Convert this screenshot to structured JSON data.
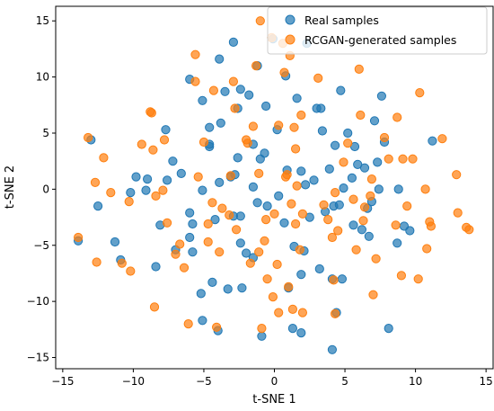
{
  "chart_data": {
    "type": "scatter",
    "title": "",
    "xlabel": "t-SNE 1",
    "ylabel": "t-SNE 2",
    "xlim": [
      -15.5,
      15.5
    ],
    "ylim": [
      -16.0,
      16.3
    ],
    "xticks": [
      -15,
      -10,
      -5,
      0,
      5,
      10,
      15
    ],
    "yticks": [
      -15,
      -10,
      -5,
      0,
      5,
      10,
      15
    ],
    "grid": false,
    "legend_position": "top-right",
    "series": [
      {
        "name": "Real samples",
        "color": "#1f77b4",
        "points": [
          [
            -13.9,
            -4.6
          ],
          [
            -13.0,
            4.4
          ],
          [
            -12.5,
            -1.5
          ],
          [
            -11.3,
            -4.7
          ],
          [
            -10.9,
            -6.3
          ],
          [
            -10.2,
            -0.3
          ],
          [
            -9.8,
            1.1
          ],
          [
            -9.1,
            -0.1
          ],
          [
            -9.0,
            0.9
          ],
          [
            -8.4,
            -6.9
          ],
          [
            -8.1,
            -3.2
          ],
          [
            -7.7,
            5.3
          ],
          [
            -7.6,
            0.8
          ],
          [
            -7.2,
            2.5
          ],
          [
            -7.0,
            -5.4
          ],
          [
            -6.6,
            1.4
          ],
          [
            -6.0,
            9.8
          ],
          [
            -6.0,
            -2.1
          ],
          [
            -6.0,
            -4.3
          ],
          [
            -5.8,
            -3.1
          ],
          [
            -5.8,
            -5.6
          ],
          [
            -5.2,
            -9.3
          ],
          [
            -5.1,
            -11.7
          ],
          [
            -5.1,
            -0.1
          ],
          [
            -5.1,
            7.9
          ],
          [
            -4.6,
            3.8
          ],
          [
            -4.6,
            5.5
          ],
          [
            -4.6,
            4.0
          ],
          [
            -4.4,
            -8.3
          ],
          [
            -4.2,
            -2.7
          ],
          [
            -4.0,
            -12.6
          ],
          [
            -3.9,
            11.6
          ],
          [
            -3.9,
            0.6
          ],
          [
            -3.8,
            5.9
          ],
          [
            -3.5,
            8.7
          ],
          [
            -3.3,
            -8.9
          ],
          [
            -3.1,
            1.1
          ],
          [
            -2.9,
            13.1
          ],
          [
            -2.9,
            -2.4
          ],
          [
            -2.8,
            1.3
          ],
          [
            -2.6,
            2.8
          ],
          [
            -2.6,
            7.2
          ],
          [
            -2.4,
            8.9
          ],
          [
            -2.4,
            -2.4
          ],
          [
            -2.4,
            -4.8
          ],
          [
            -2.3,
            -8.8
          ],
          [
            -2.0,
            -5.7
          ],
          [
            -1.8,
            8.4
          ],
          [
            -1.5,
            -6.1
          ],
          [
            -1.5,
            4.0
          ],
          [
            -1.5,
            0.2
          ],
          [
            -1.2,
            -1.2
          ],
          [
            -1.2,
            11.0
          ],
          [
            -1.0,
            2.7
          ],
          [
            -0.9,
            -13.1
          ],
          [
            -0.7,
            3.2
          ],
          [
            -0.6,
            7.4
          ],
          [
            -0.5,
            -1.5
          ],
          [
            -0.1,
            13.4
          ],
          [
            0.2,
            5.3
          ],
          [
            0.3,
            -0.6
          ],
          [
            0.7,
            -3.0
          ],
          [
            0.8,
            10.1
          ],
          [
            0.9,
            1.7
          ],
          [
            1.0,
            -8.8
          ],
          [
            1.3,
            -12.4
          ],
          [
            1.4,
            -5.1
          ],
          [
            1.6,
            8.1
          ],
          [
            1.9,
            -12.8
          ],
          [
            1.9,
            -7.6
          ],
          [
            1.9,
            1.6
          ],
          [
            2.1,
            -5.5
          ],
          [
            2.2,
            0.4
          ],
          [
            2.3,
            13.0
          ],
          [
            2.5,
            -2.5
          ],
          [
            2.8,
            0.8
          ],
          [
            3.0,
            7.2
          ],
          [
            3.2,
            -7.1
          ],
          [
            3.3,
            7.2
          ],
          [
            3.4,
            5.2
          ],
          [
            3.6,
            -2.0
          ],
          [
            3.9,
            1.8
          ],
          [
            4.1,
            -14.3
          ],
          [
            4.1,
            -8.0
          ],
          [
            4.2,
            -1.5
          ],
          [
            4.3,
            3.9
          ],
          [
            4.4,
            -11.0
          ],
          [
            4.6,
            -1.4
          ],
          [
            4.7,
            8.8
          ],
          [
            4.8,
            -8.0
          ],
          [
            4.9,
            0.1
          ],
          [
            5.2,
            5.0
          ],
          [
            5.5,
            1.0
          ],
          [
            5.6,
            -3.2
          ],
          [
            5.7,
            3.8
          ],
          [
            5.9,
            2.2
          ],
          [
            6.2,
            -3.6
          ],
          [
            6.4,
            1.9
          ],
          [
            6.6,
            -1.7
          ],
          [
            6.7,
            -4.2
          ],
          [
            6.9,
            -1.1
          ],
          [
            7.1,
            6.1
          ],
          [
            7.3,
            2.4
          ],
          [
            7.4,
            0.0
          ],
          [
            7.6,
            8.3
          ],
          [
            7.8,
            4.2
          ],
          [
            8.1,
            -12.4
          ],
          [
            8.7,
            -4.8
          ],
          [
            8.8,
            0.0
          ],
          [
            9.2,
            -3.3
          ],
          [
            9.6,
            -3.7
          ],
          [
            11.2,
            4.3
          ]
        ]
      },
      {
        "name": "RCGAN-generated samples",
        "color": "#ff7f0e",
        "points": [
          [
            -13.9,
            -4.3
          ],
          [
            -13.2,
            4.6
          ],
          [
            -12.7,
            0.6
          ],
          [
            -12.6,
            -6.5
          ],
          [
            -12.1,
            2.8
          ],
          [
            -11.6,
            -0.3
          ],
          [
            -10.8,
            -6.6
          ],
          [
            -10.3,
            -1.1
          ],
          [
            -10.2,
            -7.3
          ],
          [
            -9.4,
            4.0
          ],
          [
            -8.8,
            6.9
          ],
          [
            -8.7,
            6.8
          ],
          [
            -8.6,
            3.5
          ],
          [
            -8.5,
            -10.5
          ],
          [
            -8.4,
            -0.6
          ],
          [
            -7.9,
            -0.1
          ],
          [
            -7.8,
            4.4
          ],
          [
            -7.6,
            -3.0
          ],
          [
            -7.0,
            -5.8
          ],
          [
            -6.7,
            -4.9
          ],
          [
            -6.4,
            -7.0
          ],
          [
            -6.1,
            -12.0
          ],
          [
            -5.6,
            12.0
          ],
          [
            -5.6,
            9.6
          ],
          [
            -5.4,
            1.1
          ],
          [
            -5.0,
            4.2
          ],
          [
            -4.7,
            -3.1
          ],
          [
            -4.7,
            -4.7
          ],
          [
            -4.4,
            -1.2
          ],
          [
            -4.3,
            8.8
          ],
          [
            -4.1,
            -12.3
          ],
          [
            -3.9,
            -5.6
          ],
          [
            -3.7,
            -1.7
          ],
          [
            -3.2,
            -2.3
          ],
          [
            -3.1,
            1.2
          ],
          [
            -2.9,
            9.6
          ],
          [
            -2.8,
            7.2
          ],
          [
            -2.7,
            -3.6
          ],
          [
            -2.0,
            4.4
          ],
          [
            -1.9,
            4.1
          ],
          [
            -1.7,
            -6.6
          ],
          [
            -1.5,
            5.6
          ],
          [
            -1.3,
            11.0
          ],
          [
            -1.1,
            -5.6
          ],
          [
            -1.1,
            1.4
          ],
          [
            -1.0,
            15.0
          ],
          [
            -0.9,
            -12.4
          ],
          [
            -0.7,
            -4.6
          ],
          [
            -0.6,
            -2.7
          ],
          [
            -0.5,
            -8.0
          ],
          [
            -0.2,
            13.5
          ],
          [
            -0.1,
            -9.6
          ],
          [
            0.0,
            -2.2
          ],
          [
            0.2,
            -6.7
          ],
          [
            0.3,
            5.7
          ],
          [
            0.3,
            -11.0
          ],
          [
            0.6,
            13.0
          ],
          [
            0.7,
            10.4
          ],
          [
            0.8,
            1.1
          ],
          [
            0.9,
            1.3
          ],
          [
            1.0,
            -8.7
          ],
          [
            1.1,
            11.9
          ],
          [
            1.2,
            -1.3
          ],
          [
            1.3,
            -10.7
          ],
          [
            1.4,
            5.5
          ],
          [
            1.5,
            3.6
          ],
          [
            1.5,
            -3.1
          ],
          [
            1.6,
            0.3
          ],
          [
            1.8,
            -5.4
          ],
          [
            1.9,
            6.6
          ],
          [
            2.0,
            -2.2
          ],
          [
            2.0,
            -11.0
          ],
          [
            3.1,
            9.9
          ],
          [
            3.5,
            -1.4
          ],
          [
            3.8,
            -2.7
          ],
          [
            4.1,
            -4.3
          ],
          [
            4.2,
            -8.1
          ],
          [
            4.3,
            -11.1
          ],
          [
            4.3,
            -0.3
          ],
          [
            4.5,
            -3.7
          ],
          [
            4.9,
            2.4
          ],
          [
            5.2,
            4.1
          ],
          [
            5.6,
            -0.9
          ],
          [
            5.8,
            -5.4
          ],
          [
            6.0,
            10.7
          ],
          [
            6.1,
            6.6
          ],
          [
            6.3,
            -2.8
          ],
          [
            6.4,
            -1.6
          ],
          [
            6.8,
            -0.6
          ],
          [
            6.9,
            0.9
          ],
          [
            7.0,
            -9.4
          ],
          [
            7.2,
            -6.2
          ],
          [
            7.8,
            4.6
          ],
          [
            8.1,
            2.7
          ],
          [
            8.6,
            -3.2
          ],
          [
            8.7,
            6.4
          ],
          [
            9.0,
            -7.7
          ],
          [
            9.1,
            2.7
          ],
          [
            9.4,
            -1.5
          ],
          [
            9.8,
            2.7
          ],
          [
            10.2,
            -8.0
          ],
          [
            10.3,
            8.6
          ],
          [
            10.7,
            0.0
          ],
          [
            10.8,
            -5.3
          ],
          [
            11.0,
            -2.9
          ],
          [
            11.1,
            -3.3
          ],
          [
            11.9,
            4.5
          ],
          [
            12.9,
            1.3
          ],
          [
            13.0,
            -2.1
          ],
          [
            13.6,
            -3.4
          ],
          [
            13.8,
            -3.6
          ]
        ]
      }
    ]
  }
}
